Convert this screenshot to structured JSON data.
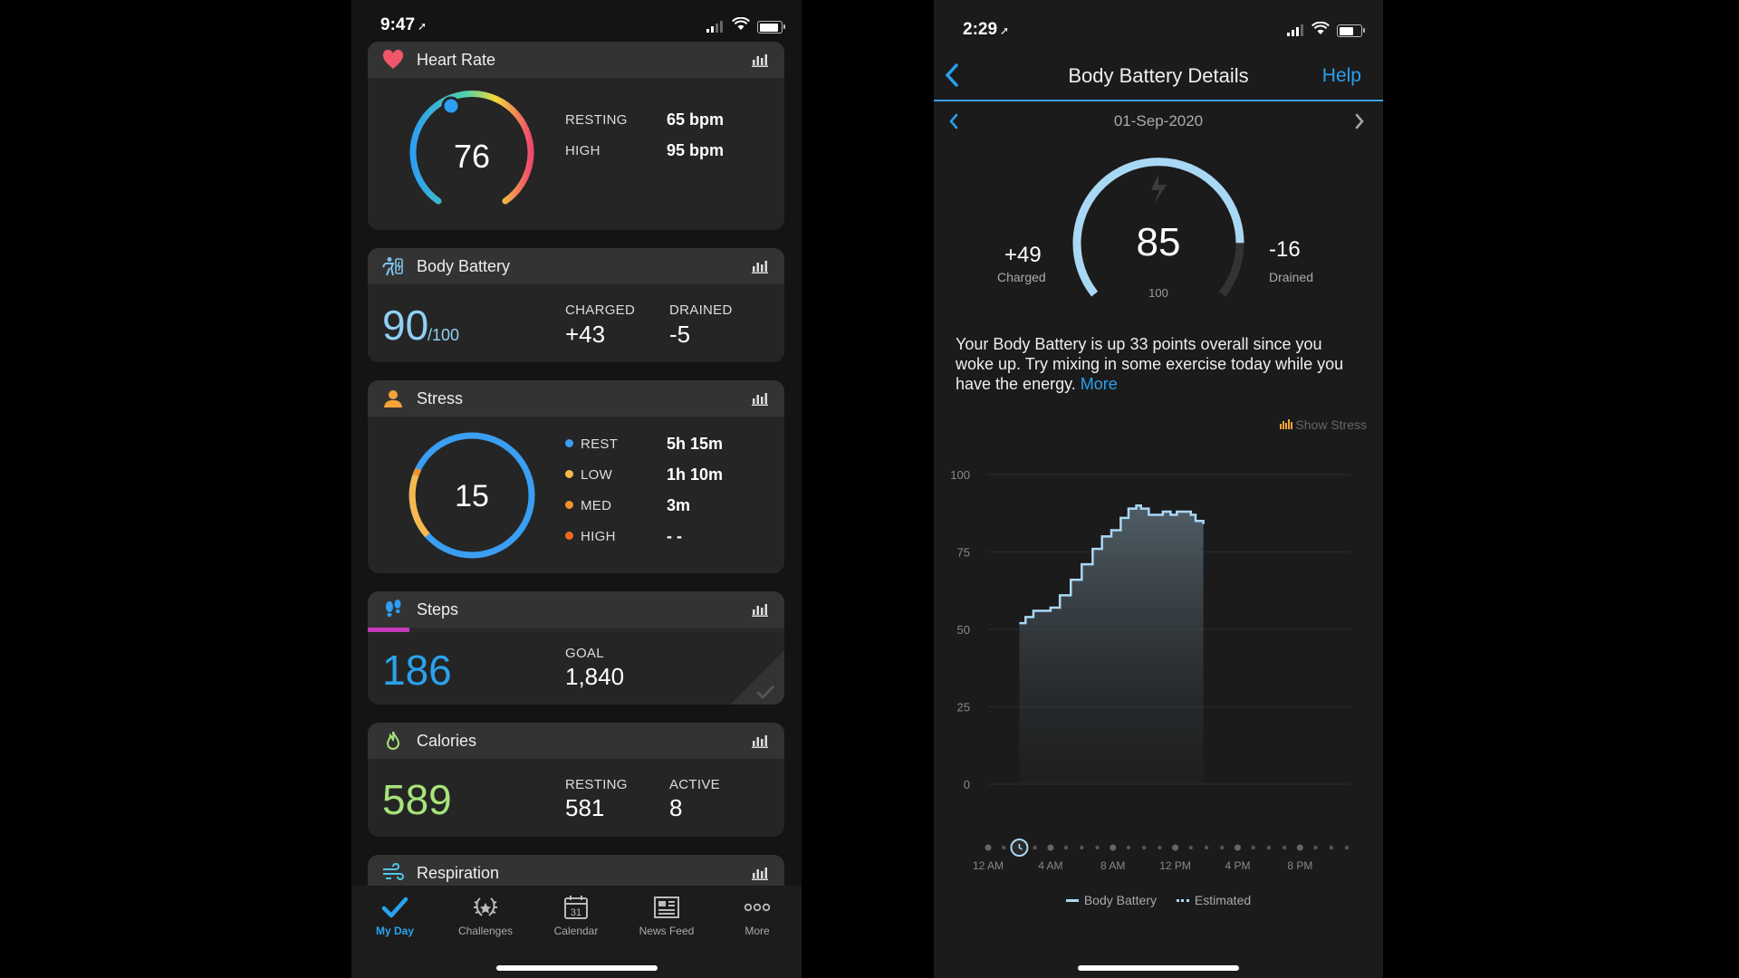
{
  "left_phone": {
    "status": {
      "time": "9:47"
    },
    "heart_rate": {
      "title": "Heart Rate",
      "current": "76",
      "gauge_level": 0.08,
      "rows": [
        {
          "label": "RESTING",
          "value": "65 bpm"
        },
        {
          "label": "HIGH",
          "value": "95 bpm"
        }
      ]
    },
    "body_battery": {
      "title": "Body Battery",
      "value": "90",
      "max": "/100",
      "charged_label": "CHARGED",
      "charged_value": "+43",
      "drained_label": "DRAINED",
      "drained_value": "-5"
    },
    "stress": {
      "title": "Stress",
      "value": "15",
      "rows": [
        {
          "label": "REST",
          "value": "5h 15m",
          "color": "#3d9df3"
        },
        {
          "label": "LOW",
          "value": "1h 10m",
          "color": "#f6b94e"
        },
        {
          "label": "MED",
          "value": "3m",
          "color": "#f2922e"
        },
        {
          "label": "HIGH",
          "value": "- -",
          "color": "#ec6a1f"
        }
      ]
    },
    "steps": {
      "title": "Steps",
      "value": "186",
      "progress": 0.1,
      "goal_label": "GOAL",
      "goal_value": "1,840"
    },
    "calories": {
      "title": "Calories",
      "value": "589",
      "resting_label": "RESTING",
      "resting_value": "581",
      "active_label": "ACTIVE",
      "active_value": "8"
    },
    "respiration": {
      "title": "Respiration"
    },
    "tabs": [
      {
        "label": "My Day",
        "icon": "check-icon",
        "active": true
      },
      {
        "label": "Challenges",
        "icon": "laurel-icon",
        "active": false
      },
      {
        "label": "Calendar",
        "icon": "calendar-icon",
        "calendar_day": "31",
        "active": false
      },
      {
        "label": "News Feed",
        "icon": "newspaper-icon",
        "active": false
      },
      {
        "label": "More",
        "icon": "more-dots-icon",
        "active": false
      }
    ]
  },
  "right_phone": {
    "status": {
      "time": "2:29"
    },
    "nav": {
      "title": "Body Battery Details",
      "help": "Help"
    },
    "date": "01-Sep-2020",
    "gauge": {
      "value": "85",
      "max": "100",
      "level": 0.85,
      "charged_value": "+49",
      "charged_label": "Charged",
      "drained_value": "-16",
      "drained_label": "Drained"
    },
    "summary_text": "Your Body Battery is up 33 points overall since you woke up. Try mixing in some exercise today while you have the energy.",
    "more_link": "More",
    "show_stress": "Show Stress",
    "legend": {
      "body_battery": "Body Battery",
      "estimated": "Estimated"
    },
    "colors": {
      "accent": "#2a9ff0",
      "gauge": "#a9d8f5",
      "line": "#a9d8f5"
    }
  },
  "chart_data": {
    "type": "area",
    "x_unit": "hour of day",
    "x_ticks": [
      "12 AM",
      "4 AM",
      "8 AM",
      "12 PM",
      "4 PM",
      "8 PM"
    ],
    "x_tick_hours": [
      0,
      4,
      8,
      12,
      16,
      20
    ],
    "xlim": [
      0,
      23
    ],
    "y_ticks": [
      "100",
      "75",
      "50",
      "25",
      "0"
    ],
    "ylim": [
      0,
      100
    ],
    "grid": true,
    "legend_placement": "bottom",
    "series": [
      {
        "name": "Body Battery",
        "x": [
          2.0,
          2.4,
          2.9,
          3.3,
          4.0,
          4.6,
          5.3,
          6.0,
          6.7,
          7.3,
          7.9,
          8.5,
          9.0,
          9.5,
          9.8,
          10.3,
          10.8,
          11.2,
          11.7,
          12.1,
          12.6,
          13.0,
          13.3,
          13.8
        ],
        "y": [
          52,
          54,
          56,
          56,
          57,
          61,
          66,
          71,
          76,
          80,
          82,
          86,
          89,
          90,
          89,
          87,
          87,
          88,
          87,
          88,
          88,
          87,
          85,
          84
        ]
      }
    ]
  }
}
